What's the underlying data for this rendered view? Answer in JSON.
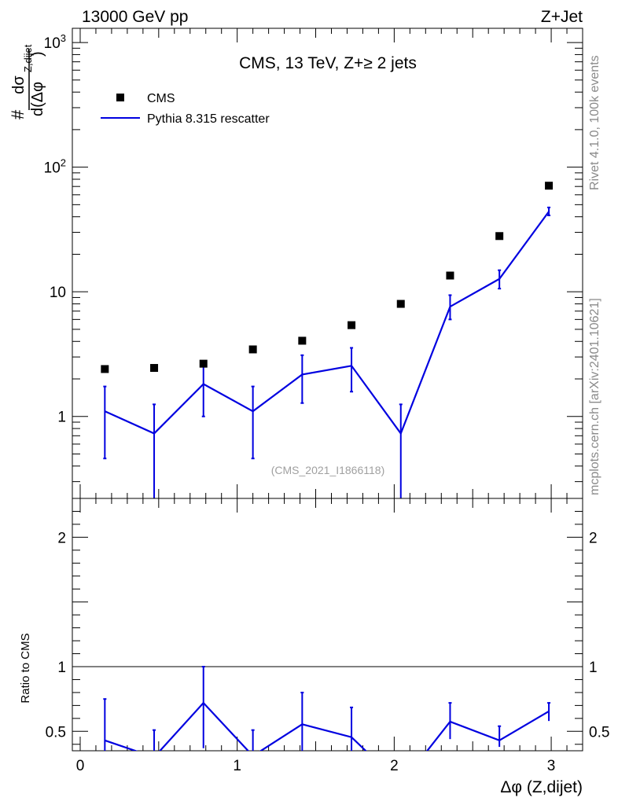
{
  "header": {
    "left": "13000 GeV pp",
    "right": "Z+Jet"
  },
  "side_labels": {
    "rivet": "Rivet 4.1.0,  100k events",
    "mcplots": "mcplots.cern.ch [arXiv:2401.10621]"
  },
  "colors": {
    "data": "#000000",
    "mc": "#0000e0",
    "watermark": "#a0a0a0"
  },
  "chart_data": [
    {
      "type": "scatter",
      "title": "CMS, 13 TeV, Z+≥ 2 jets",
      "watermark": "(CMS_2021_I1866118)",
      "ylabel": {
        "prefix": "#",
        "numerator": "dσ",
        "denominator": "d(Δφ",
        "superscript": "Z,dijet",
        "close": ")"
      },
      "xlabel": "Δφ (Z,dijet)",
      "xlim": [
        -0.05,
        3.2
      ],
      "ylim": [
        0.22,
        1300
      ],
      "yscale": "log",
      "yticks": [
        {
          "value": 1000,
          "base": "10",
          "exp": "3"
        },
        {
          "value": 100,
          "base": "10",
          "exp": "2"
        },
        {
          "value": 10,
          "base": "10",
          "exp": ""
        },
        {
          "value": 1,
          "base": "1",
          "exp": ""
        }
      ],
      "legend": [
        {
          "label": "CMS",
          "style": "square-marker"
        },
        {
          "label": "Pythia 8.315 rescatter",
          "style": "line"
        }
      ],
      "legend_position": "top-left",
      "series": [
        {
          "name": "CMS",
          "x": [
            0.157,
            0.471,
            0.785,
            1.1,
            1.414,
            1.728,
            2.042,
            2.356,
            2.67,
            2.985
          ],
          "y": [
            2.4,
            2.45,
            2.65,
            3.45,
            4.05,
            5.4,
            8.0,
            13.5,
            28.0,
            71.0
          ]
        },
        {
          "name": "Pythia 8.315 rescatter",
          "x": [
            0.157,
            0.471,
            0.785,
            1.1,
            1.414,
            1.728,
            2.042,
            2.356,
            2.67,
            2.985
          ],
          "y": [
            1.1,
            0.73,
            1.82,
            1.1,
            2.17,
            2.55,
            0.73,
            7.6,
            12.7,
            44.0
          ],
          "err_low": [
            0.46,
            0.001,
            1.0,
            0.46,
            1.28,
            1.58,
            0.001,
            6.0,
            10.6,
            41.0
          ],
          "err_high": [
            1.74,
            1.25,
            2.65,
            1.74,
            3.1,
            3.55,
            1.25,
            9.4,
            14.9,
            47.5
          ]
        }
      ]
    },
    {
      "type": "line",
      "ylabel": "Ratio to CMS",
      "xlim": [
        -0.05,
        3.2
      ],
      "ylim": [
        0.35,
        2.3
      ],
      "xticks": [
        "0",
        "1",
        "2",
        "3"
      ],
      "yticks": [
        "0.5",
        "1",
        "2"
      ],
      "reference_line": 1,
      "series": [
        {
          "name": "Pythia 8.315 rescatter / CMS",
          "x": [
            0.157,
            0.471,
            0.785,
            1.1,
            1.414,
            1.728,
            2.042,
            2.356,
            2.67,
            2.985
          ],
          "y": [
            0.43,
            0.3,
            0.72,
            0.31,
            0.555,
            0.455,
            0.09,
            0.575,
            0.43,
            0.655
          ],
          "err_low": [
            0.19,
            0.001,
            0.37,
            0.13,
            0.32,
            0.29,
            0.001,
            0.44,
            0.38,
            0.58
          ],
          "err_high": [
            0.75,
            0.51,
            1.0,
            0.51,
            0.8,
            0.685,
            0.16,
            0.72,
            0.54,
            0.72
          ]
        }
      ]
    }
  ]
}
